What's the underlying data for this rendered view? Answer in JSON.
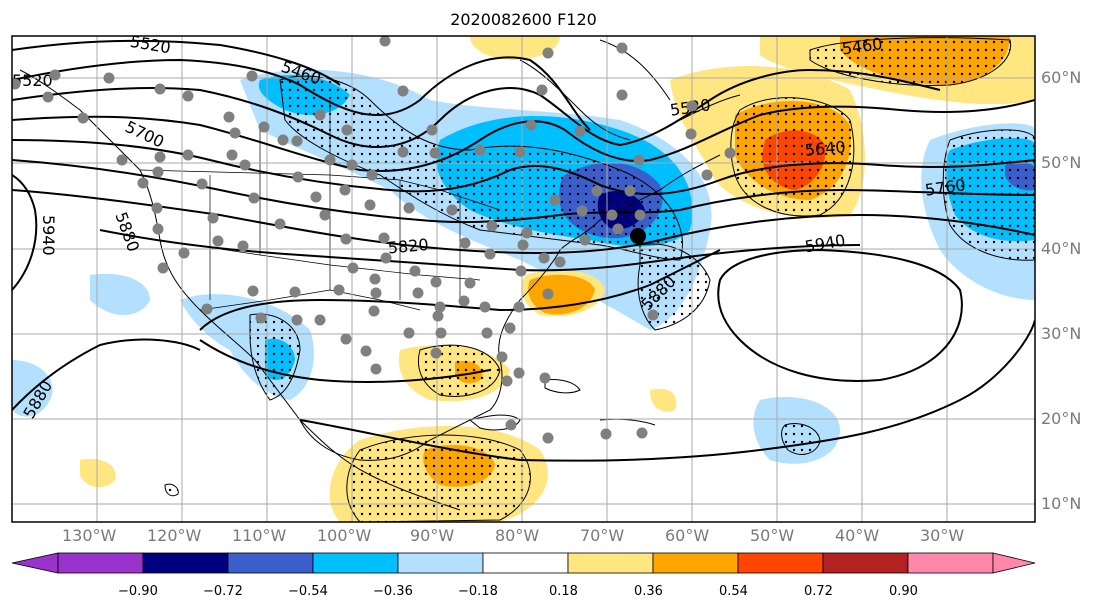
{
  "title": "2020082600 F120",
  "lon_labels": [
    "130°W",
    "120°W",
    "110°W",
    "100°W",
    "90°W",
    "80°W",
    "70°W",
    "60°W",
    "50°W",
    "40°W",
    "30°W"
  ],
  "lat_labels": [
    "60°N",
    "50°N",
    "40°N",
    "30°N",
    "20°N",
    "10°N"
  ],
  "contour_labels": [
    "5520",
    "5460",
    "5520",
    "5700",
    "5640",
    "5760",
    "5940",
    "5880",
    "5820",
    "5880",
    "5940",
    "5880",
    "5460",
    "5520"
  ],
  "colorbar": {
    "ticks": [
      "−0.90",
      "−0.72",
      "−0.54",
      "−0.36",
      "−0.18",
      "0.18",
      "0.36",
      "0.54",
      "0.72",
      "0.90"
    ],
    "colors": [
      "#9933cc",
      "#000080",
      "#3a5fcd",
      "#00bfff",
      "#b3e0ff",
      "#ffffff",
      "#ffe680",
      "#ffa500",
      "#ff4500",
      "#b22222",
      "#ff88aa"
    ]
  }
}
